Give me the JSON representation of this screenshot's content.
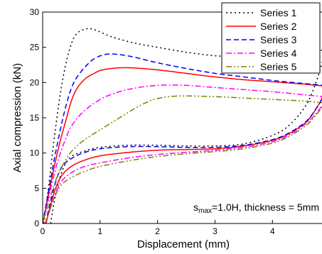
{
  "chart_data": {
    "type": "line",
    "title": "",
    "xlabel": "Displacement (mm)",
    "ylabel": "Axial compression (kN)",
    "xlim": [
      0,
      4.9
    ],
    "ylim": [
      0,
      30
    ],
    "xticks": [
      "0",
      "1",
      "2",
      "3",
      "4"
    ],
    "yticks": [
      "0",
      "5",
      "10",
      "15",
      "20",
      "25",
      "30"
    ],
    "grid": false,
    "legend_position": "top-right",
    "annotation": {
      "symbol": "s",
      "subscript": "max",
      "rest": "=1.0H, thickness = 5mm"
    },
    "series": [
      {
        "name": "Series 1",
        "color": "#000000",
        "dash": "dotted",
        "loading": [
          [
            0.02,
            0
          ],
          [
            0.1,
            5
          ],
          [
            0.2,
            12
          ],
          [
            0.3,
            18
          ],
          [
            0.4,
            22.5
          ],
          [
            0.5,
            25.5
          ],
          [
            0.6,
            27
          ],
          [
            0.75,
            27.6
          ],
          [
            0.9,
            27.5
          ],
          [
            1.2,
            26.5
          ],
          [
            1.6,
            25.6
          ],
          [
            2.0,
            25
          ],
          [
            2.5,
            24.3
          ],
          [
            3.0,
            23.8
          ],
          [
            3.5,
            23.6
          ],
          [
            4.0,
            23.6
          ],
          [
            4.5,
            23.9
          ],
          [
            4.8,
            24.5
          ],
          [
            4.9,
            24.6
          ]
        ],
        "unloading": [
          [
            0.14,
            0
          ],
          [
            0.2,
            3
          ],
          [
            0.3,
            6.5
          ],
          [
            0.4,
            8.5
          ],
          [
            0.5,
            9.5
          ],
          [
            0.7,
            10.2
          ],
          [
            1.0,
            10.8
          ],
          [
            1.5,
            11.1
          ],
          [
            2.0,
            11.1
          ],
          [
            2.5,
            11.0
          ],
          [
            3.0,
            11.0
          ],
          [
            3.5,
            11.3
          ],
          [
            4.0,
            12.5
          ],
          [
            4.3,
            14
          ],
          [
            4.6,
            17
          ],
          [
            4.8,
            21
          ],
          [
            4.9,
            24
          ]
        ]
      },
      {
        "name": "Series 2",
        "color": "#ff0000",
        "dash": "solid",
        "loading": [
          [
            0,
            0
          ],
          [
            0.1,
            4
          ],
          [
            0.2,
            8
          ],
          [
            0.3,
            11.5
          ],
          [
            0.4,
            14.5
          ],
          [
            0.5,
            17.4
          ],
          [
            0.6,
            19.2
          ],
          [
            0.75,
            20.6
          ],
          [
            0.9,
            21.3
          ],
          [
            1.0,
            21.7
          ],
          [
            1.2,
            22
          ],
          [
            1.5,
            22.1
          ],
          [
            2.0,
            21.8
          ],
          [
            2.5,
            21.3
          ],
          [
            3.0,
            20.8
          ],
          [
            3.5,
            20.4
          ],
          [
            4.0,
            20.1
          ],
          [
            4.5,
            19.8
          ],
          [
            4.9,
            19.5
          ]
        ],
        "unloading": [
          [
            0.06,
            0
          ],
          [
            0.15,
            3
          ],
          [
            0.25,
            5.5
          ],
          [
            0.35,
            7
          ],
          [
            0.5,
            8.1
          ],
          [
            0.7,
            8.9
          ],
          [
            1.0,
            9.6
          ],
          [
            1.5,
            10.1
          ],
          [
            2.0,
            10.4
          ],
          [
            2.5,
            10.5
          ],
          [
            3.0,
            10.6
          ],
          [
            3.5,
            11.0
          ],
          [
            4.0,
            11.8
          ],
          [
            4.3,
            12.8
          ],
          [
            4.6,
            14.5
          ],
          [
            4.8,
            16.8
          ],
          [
            4.9,
            18.5
          ]
        ]
      },
      {
        "name": "Series 3",
        "color": "#0000ff",
        "dash": "dashed",
        "loading": [
          [
            0,
            0
          ],
          [
            0.1,
            4.5
          ],
          [
            0.2,
            9
          ],
          [
            0.3,
            13
          ],
          [
            0.4,
            16.5
          ],
          [
            0.5,
            19.2
          ],
          [
            0.6,
            20.8
          ],
          [
            0.75,
            22.3
          ],
          [
            0.9,
            23.4
          ],
          [
            1.1,
            24
          ],
          [
            1.3,
            24
          ],
          [
            1.6,
            23.6
          ],
          [
            2.0,
            22.8
          ],
          [
            2.5,
            22
          ],
          [
            3.0,
            21.3
          ],
          [
            3.5,
            20.8
          ],
          [
            4.0,
            20.3
          ],
          [
            4.5,
            19.9
          ],
          [
            4.9,
            19.6
          ]
        ],
        "unloading": [
          [
            0.05,
            0
          ],
          [
            0.15,
            3.5
          ],
          [
            0.25,
            6.5
          ],
          [
            0.35,
            8.2
          ],
          [
            0.5,
            9.2
          ],
          [
            0.7,
            10.0
          ],
          [
            1.0,
            10.6
          ],
          [
            1.5,
            10.9
          ],
          [
            2.0,
            10.9
          ],
          [
            2.5,
            10.8
          ],
          [
            3.0,
            10.8
          ],
          [
            3.5,
            11.1
          ],
          [
            4.0,
            11.9
          ],
          [
            4.3,
            12.9
          ],
          [
            4.6,
            14.6
          ],
          [
            4.8,
            16.8
          ],
          [
            4.9,
            18.2
          ]
        ]
      },
      {
        "name": "Series 4",
        "color": "#ff00ff",
        "dash": "dashdot",
        "loading": [
          [
            0,
            0
          ],
          [
            0.1,
            3.5
          ],
          [
            0.2,
            7
          ],
          [
            0.3,
            9.8
          ],
          [
            0.4,
            12
          ],
          [
            0.5,
            13.8
          ],
          [
            0.7,
            15.8
          ],
          [
            1.0,
            17.6
          ],
          [
            1.3,
            18.6
          ],
          [
            1.6,
            19.2
          ],
          [
            2.0,
            19.6
          ],
          [
            2.5,
            19.6
          ],
          [
            3.0,
            19.3
          ],
          [
            3.5,
            19
          ],
          [
            4.0,
            18.7
          ],
          [
            4.5,
            18.3
          ],
          [
            4.9,
            18.0
          ]
        ],
        "unloading": [
          [
            0.05,
            0
          ],
          [
            0.15,
            2.5
          ],
          [
            0.25,
            4.8
          ],
          [
            0.35,
            6.2
          ],
          [
            0.5,
            7.2
          ],
          [
            0.7,
            8.0
          ],
          [
            1.0,
            8.6
          ],
          [
            1.5,
            9.3
          ],
          [
            2.0,
            9.8
          ],
          [
            2.5,
            10.1
          ],
          [
            3.0,
            10.4
          ],
          [
            3.5,
            10.8
          ],
          [
            4.0,
            11.6
          ],
          [
            4.3,
            12.6
          ],
          [
            4.6,
            14.3
          ],
          [
            4.8,
            16
          ],
          [
            4.9,
            17.3
          ]
        ]
      },
      {
        "name": "Series 5",
        "color": "#808000",
        "dash": "dashdotdot",
        "loading": [
          [
            0,
            0
          ],
          [
            0.1,
            2.8
          ],
          [
            0.2,
            5.5
          ],
          [
            0.3,
            7.5
          ],
          [
            0.4,
            9
          ],
          [
            0.5,
            10.2
          ],
          [
            0.7,
            11.7
          ],
          [
            1.0,
            13.3
          ],
          [
            1.3,
            14.8
          ],
          [
            1.6,
            16.3
          ],
          [
            1.9,
            17.5
          ],
          [
            2.2,
            18
          ],
          [
            2.5,
            18.1
          ],
          [
            3.0,
            18
          ],
          [
            3.5,
            17.8
          ],
          [
            4.0,
            17.6
          ],
          [
            4.5,
            17.4
          ],
          [
            4.9,
            17.1
          ]
        ],
        "unloading": [
          [
            0.04,
            0
          ],
          [
            0.15,
            2.5
          ],
          [
            0.25,
            4.5
          ],
          [
            0.35,
            5.7
          ],
          [
            0.5,
            6.5
          ],
          [
            0.7,
            7.3
          ],
          [
            1.0,
            8.1
          ],
          [
            1.5,
            8.9
          ],
          [
            2.0,
            9.5
          ],
          [
            2.5,
            9.9
          ],
          [
            3.0,
            10.2
          ],
          [
            3.5,
            10.6
          ],
          [
            4.0,
            11.4
          ],
          [
            4.3,
            12.4
          ],
          [
            4.6,
            14
          ],
          [
            4.8,
            15.8
          ],
          [
            4.9,
            17
          ]
        ]
      }
    ]
  }
}
